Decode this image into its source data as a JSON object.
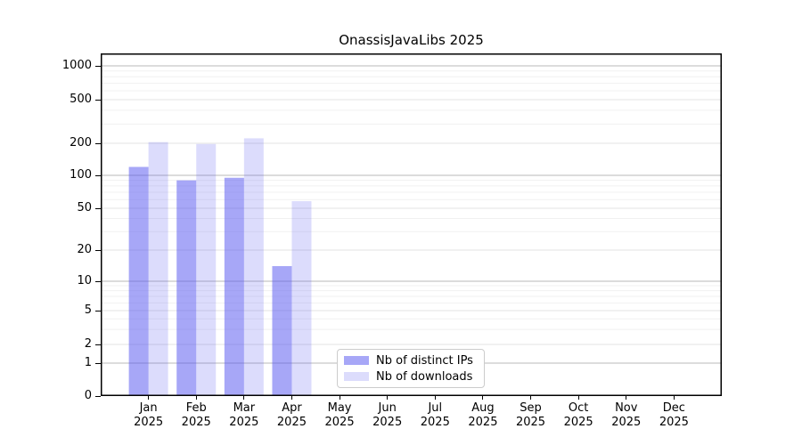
{
  "chart_data": {
    "type": "bar",
    "title": "OnassisJavaLibs 2025",
    "x_categories": [
      "Jan",
      "Feb",
      "Mar",
      "Apr",
      "May",
      "Jun",
      "Jul",
      "Aug",
      "Sep",
      "Oct",
      "Nov",
      "Dec"
    ],
    "x_year": "2025",
    "y_ticks": [
      0,
      1,
      2,
      5,
      10,
      20,
      50,
      100,
      200,
      500,
      1000
    ],
    "y_scale": "symlog (linear 0-1, logarithmic 1-1000)",
    "ylim": [
      0,
      1300
    ],
    "grid": "horizontal major and minor gridlines",
    "legend_position": "lower center inside plot",
    "series": [
      {
        "name": "Nb of distinct IPs",
        "color": "rgba(80,80,240,0.5)",
        "values": [
          120,
          90,
          95,
          14,
          0,
          0,
          0,
          0,
          0,
          0,
          0,
          0
        ]
      },
      {
        "name": "Nb of downloads",
        "color": "rgba(80,80,240,0.2)",
        "values": [
          205,
          197,
          222,
          58,
          0,
          0,
          0,
          0,
          0,
          0,
          0,
          0
        ]
      }
    ]
  }
}
